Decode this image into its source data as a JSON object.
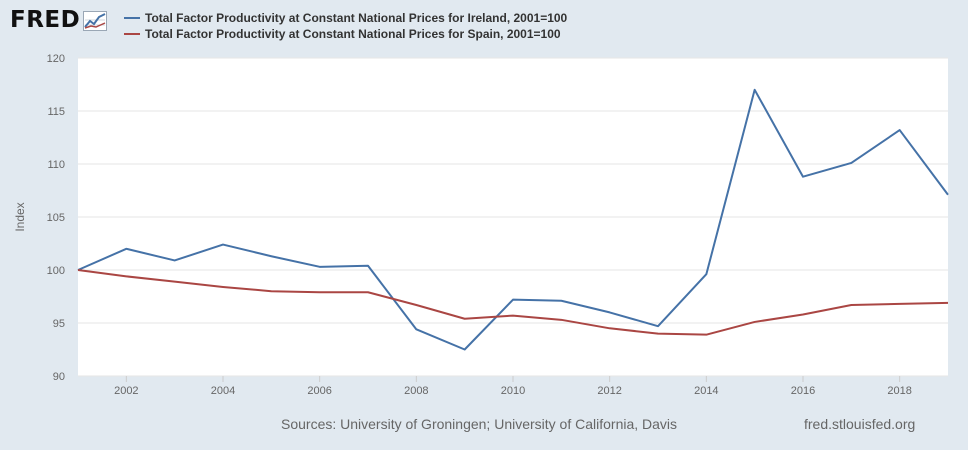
{
  "brand": {
    "name": "FRED"
  },
  "footer": {
    "sources": "Sources: University of Groningen; University of California, Davis",
    "site": "fred.stlouisfed.org"
  },
  "colors": {
    "background": "#e1e9f0",
    "plot_bg": "#ffffff",
    "grid": "#e6e6e6"
  },
  "chart_data": {
    "type": "line",
    "ylabel": "Index",
    "xlabel": "",
    "xlim": [
      2001,
      2019
    ],
    "ylim": [
      90,
      120
    ],
    "x_ticks": [
      2002,
      2004,
      2006,
      2008,
      2010,
      2012,
      2014,
      2016,
      2018
    ],
    "y_ticks": [
      90,
      95,
      100,
      105,
      110,
      115,
      120
    ],
    "grid": "horizontal",
    "legend_position": "top",
    "x": [
      2001,
      2002,
      2003,
      2004,
      2005,
      2006,
      2007,
      2008,
      2009,
      2010,
      2011,
      2012,
      2013,
      2014,
      2015,
      2016,
      2017,
      2018,
      2019
    ],
    "series": [
      {
        "name": "Total Factor Productivity at Constant National Prices for Ireland, 2001=100",
        "color": "#4572a7",
        "values": [
          100,
          102.0,
          100.9,
          102.4,
          101.3,
          100.3,
          100.4,
          94.4,
          92.5,
          97.2,
          97.1,
          96.0,
          94.7,
          99.6,
          117.0,
          108.8,
          110.1,
          113.2,
          107.1
        ]
      },
      {
        "name": "Total Factor Productivity at Constant National Prices for Spain, 2001=100",
        "color": "#aa4643",
        "values": [
          100,
          99.4,
          98.9,
          98.4,
          98.0,
          97.9,
          97.9,
          96.7,
          95.4,
          95.7,
          95.3,
          94.5,
          94.0,
          93.9,
          95.1,
          95.8,
          96.7,
          96.8,
          96.9
        ]
      }
    ]
  }
}
